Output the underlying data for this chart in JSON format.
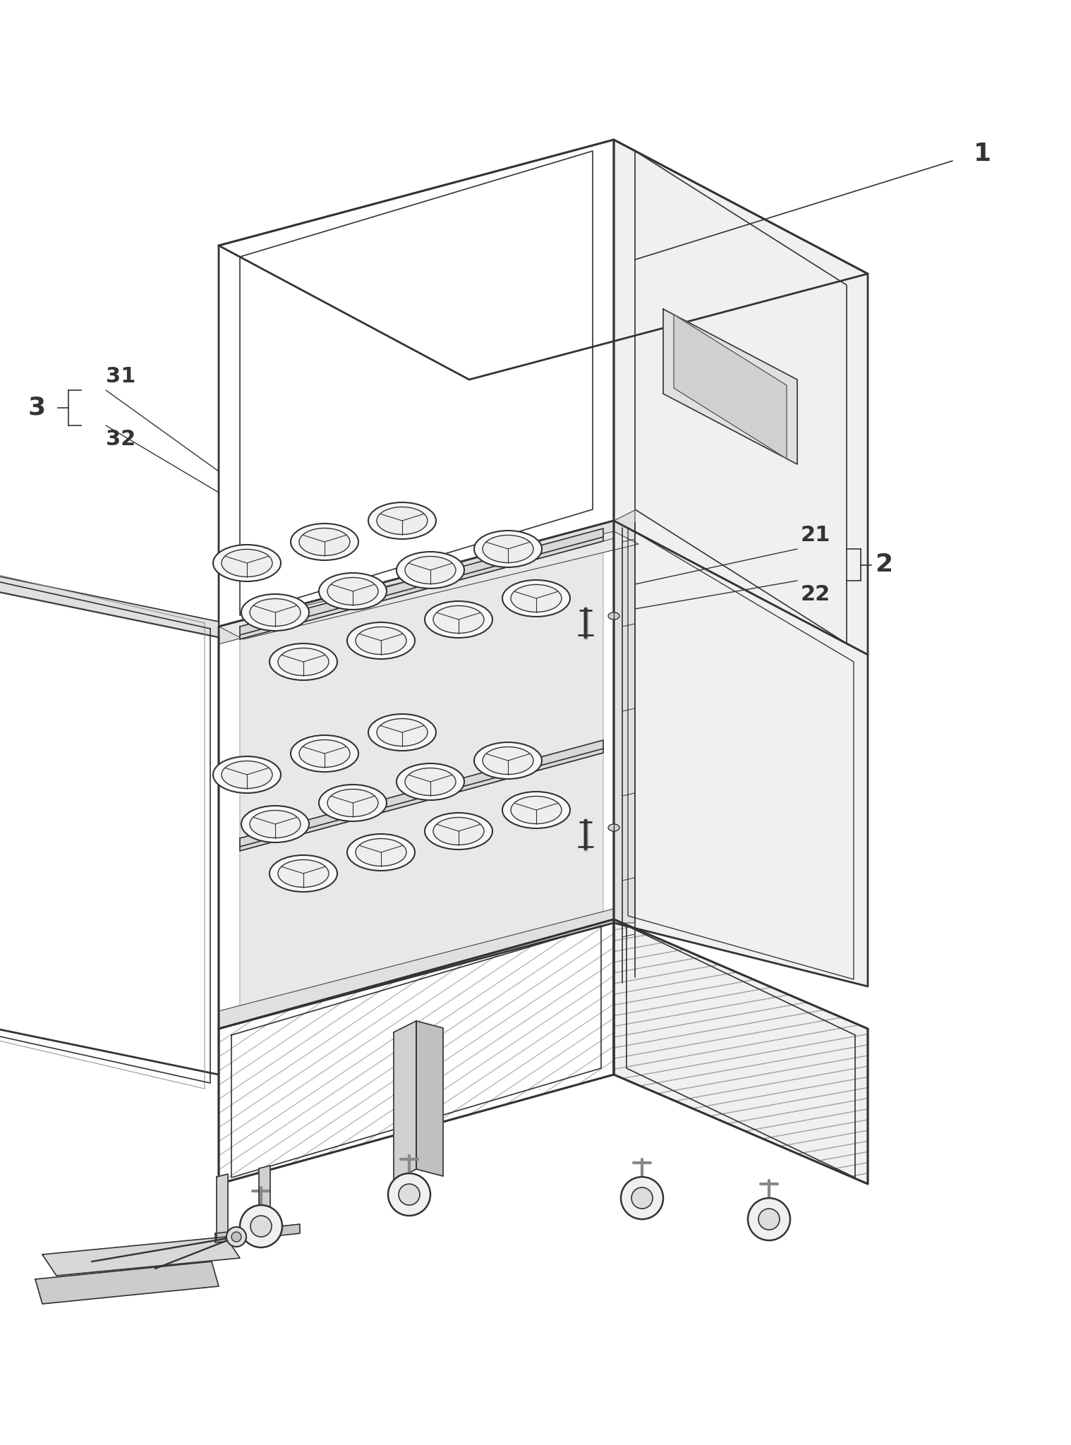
{
  "bg_color": "#ffffff",
  "line_color": "#333333",
  "lw_main": 2.0,
  "lw_detail": 1.2,
  "lw_thin": 0.7,
  "label_1": "1",
  "label_2": "2",
  "label_3": "3",
  "label_21": "21",
  "label_22": "22",
  "label_31": "31",
  "label_32": "32",
  "face_white": "#ffffff",
  "face_light": "#f0f0f0",
  "face_mid": "#e0e0e0",
  "face_dark": "#d0d0d0",
  "hatch_color": "#888888"
}
